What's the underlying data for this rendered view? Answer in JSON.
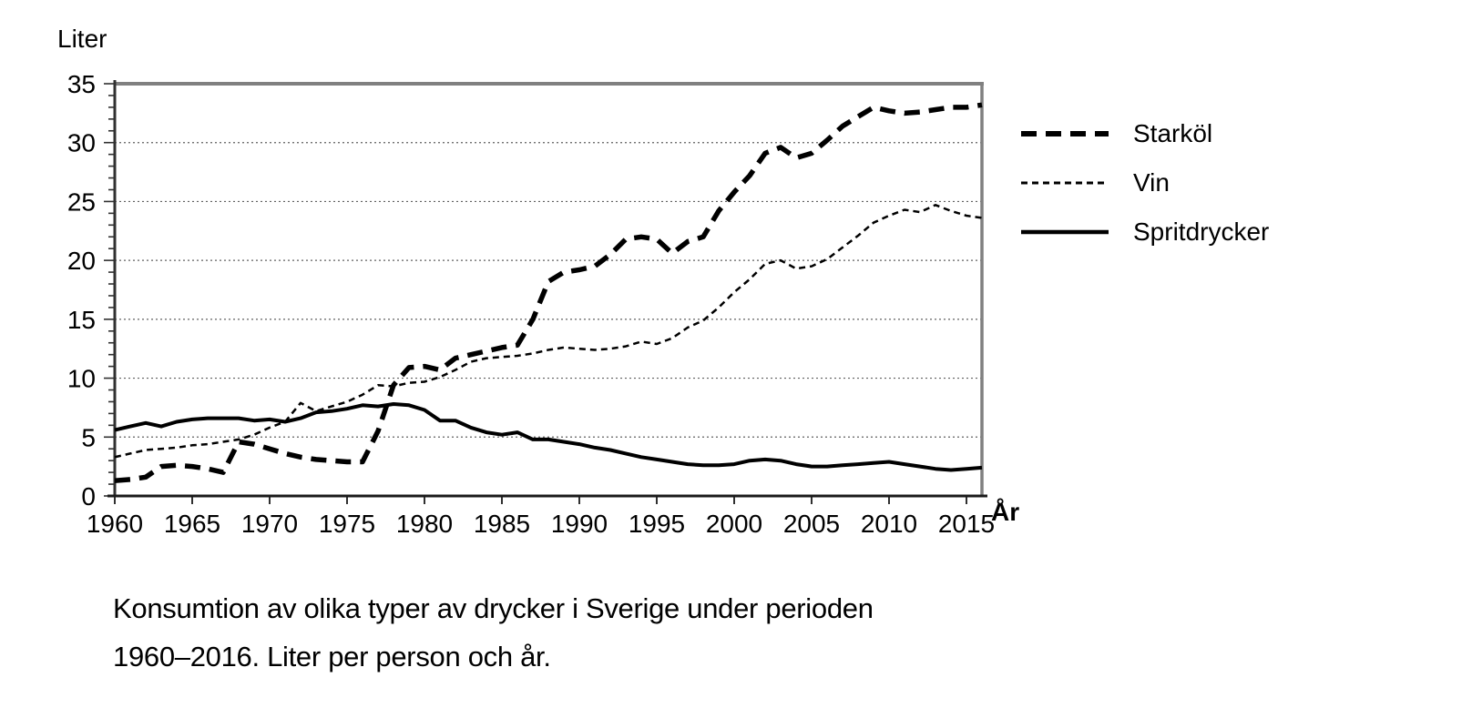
{
  "chart": {
    "y_axis_title": "Liter",
    "x_axis_title": "År"
  },
  "caption": {
    "line1": "Konsumtion av olika typer av drycker i Sverige under perioden",
    "line2": "1960–2016. Liter per person och år."
  },
  "colors": {
    "series": "#000000",
    "plot_border_gray": "#808080",
    "axis": "#303030",
    "gridline": "#606060",
    "background": "#ffffff"
  },
  "chart_data": {
    "type": "line",
    "title": "",
    "ylabel": "Liter",
    "xlabel": "År",
    "ylim": [
      0,
      35
    ],
    "xlim": [
      1960,
      2016
    ],
    "y_ticks": [
      0,
      5,
      10,
      15,
      20,
      25,
      30,
      35
    ],
    "y_minor_tick_step": 1,
    "x_ticks": [
      1960,
      1965,
      1970,
      1975,
      1980,
      1985,
      1990,
      1995,
      2000,
      2005,
      2010,
      2015
    ],
    "grid": "horizontal dotted at multiples of 5",
    "legend_position": "right",
    "x": [
      1960,
      1961,
      1962,
      1963,
      1964,
      1965,
      1966,
      1967,
      1968,
      1969,
      1970,
      1971,
      1972,
      1973,
      1974,
      1975,
      1976,
      1977,
      1978,
      1979,
      1980,
      1981,
      1982,
      1983,
      1984,
      1985,
      1986,
      1987,
      1988,
      1989,
      1990,
      1991,
      1992,
      1993,
      1994,
      1995,
      1996,
      1997,
      1998,
      1999,
      2000,
      2001,
      2002,
      2003,
      2004,
      2005,
      2006,
      2007,
      2008,
      2009,
      2010,
      2011,
      2012,
      2013,
      2014,
      2015,
      2016
    ],
    "series": [
      {
        "name": "Starköl",
        "style": "thick-dashed",
        "values": [
          1.3,
          1.4,
          1.6,
          2.5,
          2.6,
          2.5,
          2.3,
          2.0,
          4.6,
          4.4,
          4.0,
          3.6,
          3.3,
          3.1,
          3.0,
          2.9,
          2.9,
          5.5,
          9.4,
          10.9,
          11.0,
          10.7,
          11.7,
          12.0,
          12.3,
          12.6,
          12.8,
          15.0,
          18.2,
          19.0,
          19.2,
          19.5,
          20.5,
          21.8,
          22.0,
          21.8,
          20.6,
          21.6,
          22.0,
          24.2,
          25.8,
          27.2,
          29.1,
          29.6,
          28.7,
          29.1,
          30.2,
          31.4,
          32.2,
          33.0,
          32.7,
          32.5,
          32.6,
          32.8,
          33.0,
          33.0,
          33.2
        ]
      },
      {
        "name": "Vin",
        "style": "thin-dashed",
        "values": [
          3.3,
          3.6,
          3.9,
          4.0,
          4.1,
          4.3,
          4.4,
          4.6,
          4.8,
          5.2,
          5.8,
          6.3,
          7.9,
          7.2,
          7.6,
          8.0,
          8.6,
          9.4,
          9.3,
          9.6,
          9.7,
          10.1,
          10.7,
          11.4,
          11.7,
          11.8,
          11.9,
          12.1,
          12.4,
          12.6,
          12.5,
          12.4,
          12.5,
          12.7,
          13.1,
          12.9,
          13.4,
          14.3,
          14.9,
          16.0,
          17.3,
          18.4,
          19.7,
          20.0,
          19.3,
          19.5,
          20.1,
          21.1,
          22.1,
          23.2,
          23.8,
          24.3,
          24.1,
          24.7,
          24.2,
          23.8,
          23.6
        ]
      },
      {
        "name": "Spritdrycker",
        "style": "solid",
        "values": [
          5.6,
          5.9,
          6.2,
          5.9,
          6.3,
          6.5,
          6.6,
          6.6,
          6.6,
          6.4,
          6.5,
          6.3,
          6.6,
          7.1,
          7.2,
          7.4,
          7.7,
          7.6,
          7.8,
          7.7,
          7.3,
          6.4,
          6.4,
          5.8,
          5.4,
          5.2,
          5.4,
          4.8,
          4.8,
          4.6,
          4.4,
          4.1,
          3.9,
          3.6,
          3.3,
          3.1,
          2.9,
          2.7,
          2.6,
          2.6,
          2.7,
          3.0,
          3.1,
          3.0,
          2.7,
          2.5,
          2.5,
          2.6,
          2.7,
          2.8,
          2.9,
          2.7,
          2.5,
          2.3,
          2.2,
          2.3,
          2.4
        ]
      }
    ]
  }
}
